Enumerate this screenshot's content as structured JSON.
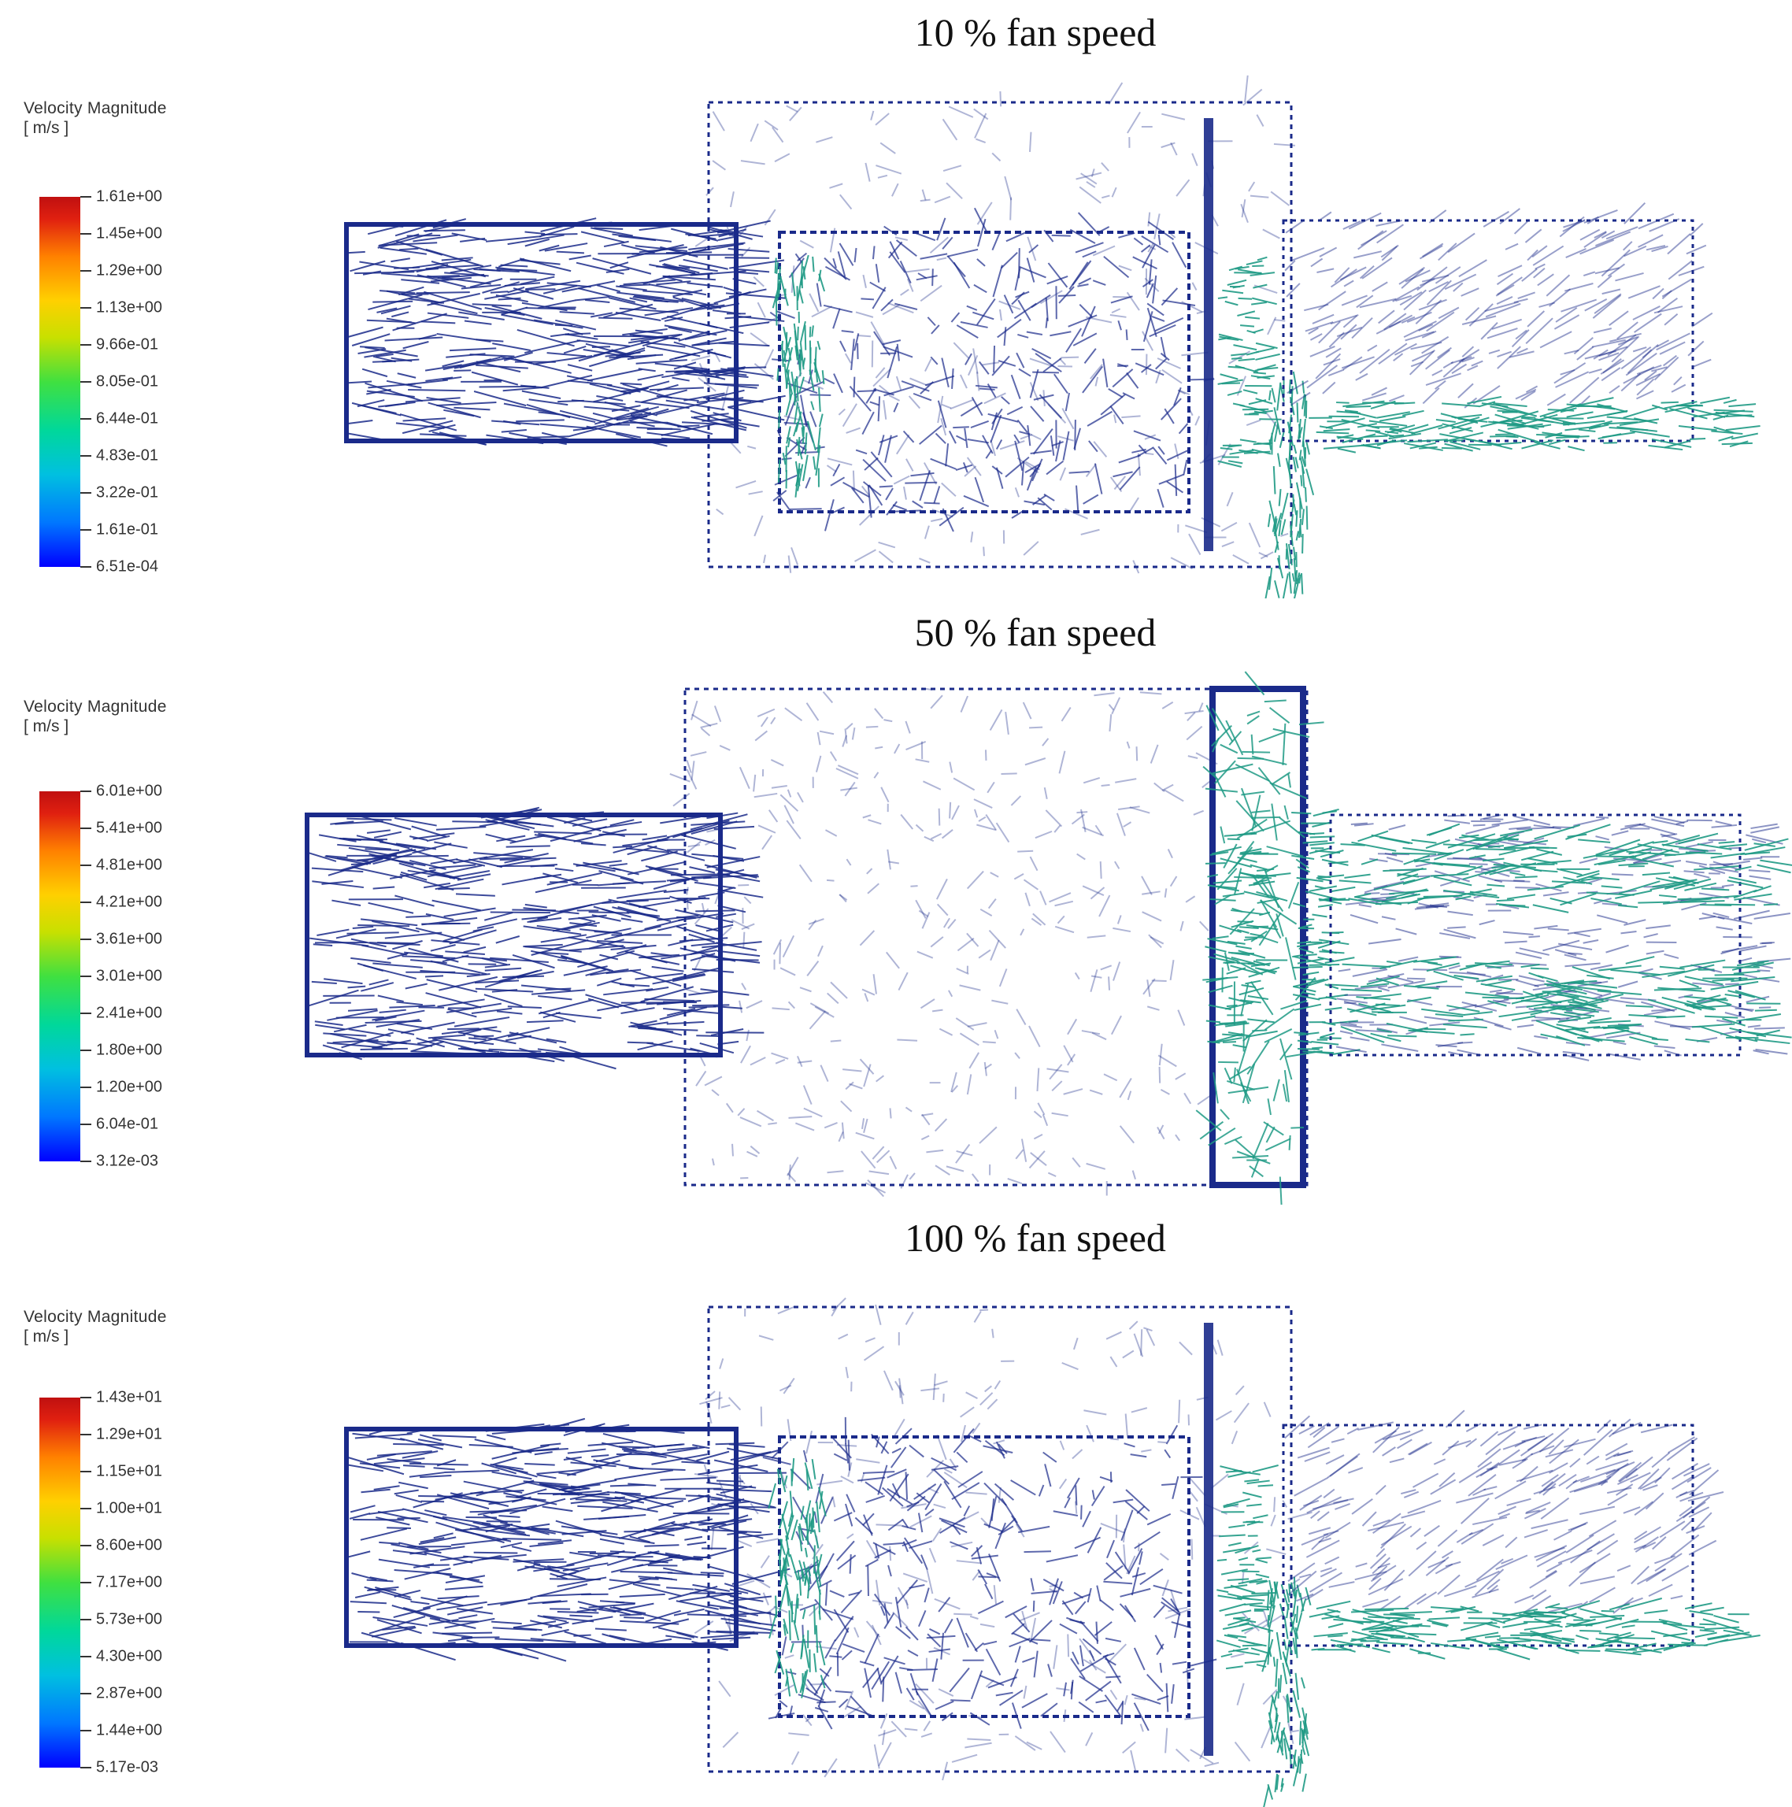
{
  "panels": [
    {
      "title": "10 % fan speed",
      "legend": {
        "title": "Velocity Magnitude",
        "units": "[ m/s ]",
        "ticks": [
          "1.61e+00",
          "1.45e+00",
          "1.29e+00",
          "1.13e+00",
          "9.66e-01",
          "8.05e-01",
          "6.44e-01",
          "4.83e-01",
          "3.22e-01",
          "1.61e-01",
          "6.51e-04"
        ]
      }
    },
    {
      "title": "50 % fan speed",
      "legend": {
        "title": "Velocity Magnitude",
        "units": "[ m/s ]",
        "ticks": [
          "6.01e+00",
          "5.41e+00",
          "4.81e+00",
          "4.21e+00",
          "3.61e+00",
          "3.01e+00",
          "2.41e+00",
          "1.80e+00",
          "1.20e+00",
          "6.04e-01",
          "3.12e-03"
        ]
      }
    },
    {
      "title": "100 % fan speed",
      "legend": {
        "title": "Velocity Magnitude",
        "units": "[ m/s ]",
        "ticks": [
          "1.43e+01",
          "1.29e+01",
          "1.15e+01",
          "1.00e+01",
          "8.60e+00",
          "7.17e+00",
          "5.73e+00",
          "4.30e+00",
          "2.87e+00",
          "1.44e+00",
          "5.17e-03"
        ]
      }
    }
  ],
  "colors": {
    "low_velocity": "#1a2a8a",
    "mid_velocity": "#1f9a85",
    "colormap_min": "#0000ff",
    "colormap_max": "#c01010"
  }
}
